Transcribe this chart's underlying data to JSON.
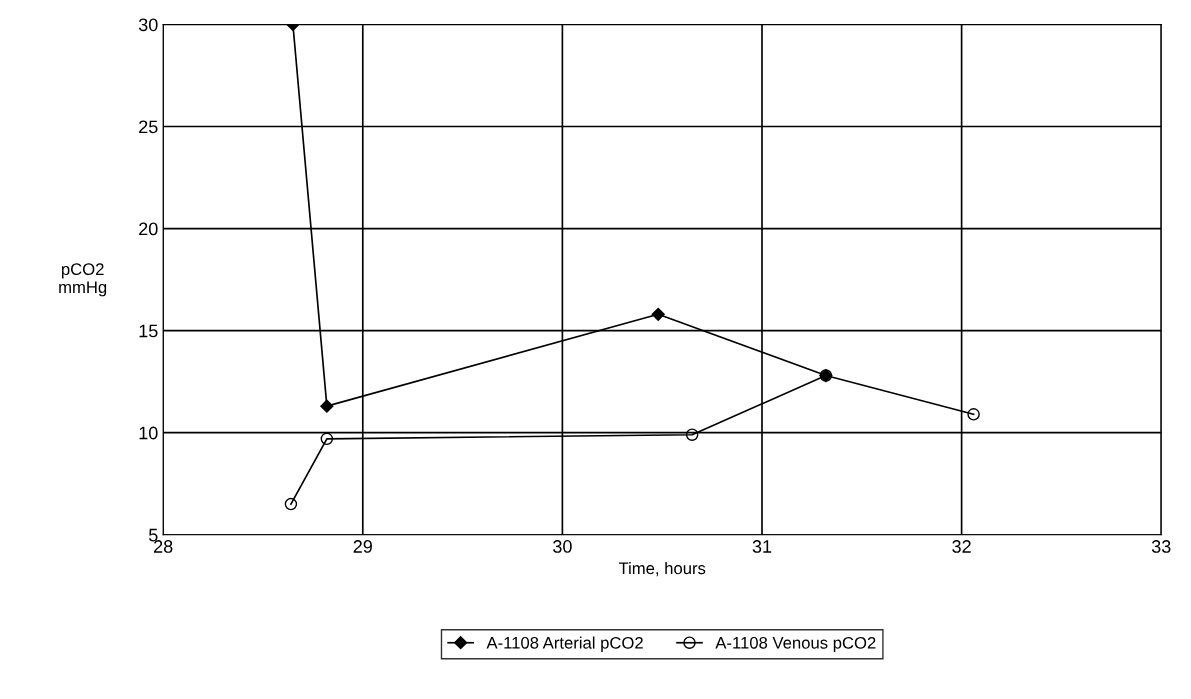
{
  "chart_data": {
    "type": "line",
    "xlabel": "Time, hours",
    "ylabel": "pCO2\nmmHg",
    "xlim": [
      28,
      33
    ],
    "xticks": [
      28,
      29,
      30,
      31,
      32,
      33
    ],
    "ylim": [
      5,
      30
    ],
    "yticks": [
      5,
      10,
      15,
      20,
      25,
      30
    ],
    "grid": true,
    "legend": "bottom",
    "line_style": "solid",
    "series": [
      {
        "name": "A-1108 Arterial pCO2",
        "color": "#000000",
        "marker": "diamond",
        "x": [
          28.65,
          28.82,
          30.48,
          31.32
        ],
        "values": [
          30,
          11.3,
          15.8,
          12.8
        ]
      },
      {
        "name": "A-1108 Venous pCO2",
        "color": "#000000",
        "marker": "circle",
        "x": [
          28.64,
          28.82,
          30.65,
          31.32,
          32.06
        ],
        "values": [
          6.5,
          9.7,
          9.9,
          12.8,
          10.9
        ]
      }
    ]
  }
}
